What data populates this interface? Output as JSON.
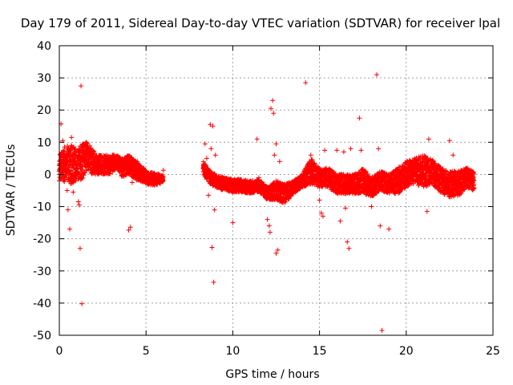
{
  "chart_data": {
    "type": "scatter",
    "title": "Day 179 of 2011, Sidereal Day-to-day VTEC variation (SDTVAR) for receiver lpal",
    "xlabel": "GPS time / hours",
    "ylabel": "SDTVAR / TECUs",
    "xlim": [
      0,
      25
    ],
    "ylim": [
      -50,
      40
    ],
    "xticks": [
      0,
      5,
      10,
      15,
      20,
      25
    ],
    "yticks": [
      -50,
      -40,
      -30,
      -20,
      -10,
      0,
      10,
      20,
      30,
      40
    ],
    "grid": true,
    "marker": "+",
    "color": "#ff0000",
    "dense_band": [
      [
        0.0,
        2,
        4
      ],
      [
        0.2,
        3,
        5
      ],
      [
        0.5,
        3,
        6
      ],
      [
        0.8,
        3,
        6
      ],
      [
        1.0,
        3,
        5
      ],
      [
        1.3,
        4,
        6
      ],
      [
        1.6,
        6,
        4
      ],
      [
        1.9,
        4,
        4
      ],
      [
        2.2,
        3,
        3
      ],
      [
        2.5,
        3,
        3
      ],
      [
        3.0,
        3,
        3
      ],
      [
        3.3,
        4,
        2
      ],
      [
        3.6,
        2,
        3
      ],
      [
        4.0,
        3,
        3
      ],
      [
        4.5,
        1,
        3
      ],
      [
        5.0,
        -1,
        2
      ],
      [
        5.5,
        -1.5,
        2
      ],
      [
        6.0,
        -1.5,
        1
      ],
      [
        8.3,
        2,
        2
      ],
      [
        8.7,
        -1,
        2
      ],
      [
        9.0,
        -2,
        2
      ],
      [
        9.5,
        -3,
        2
      ],
      [
        10.0,
        -3.5,
        2
      ],
      [
        10.5,
        -3.5,
        2
      ],
      [
        11.0,
        -4,
        2
      ],
      [
        11.5,
        -3.5,
        2
      ],
      [
        12.0,
        -6,
        2
      ],
      [
        12.5,
        -5,
        3
      ],
      [
        13.0,
        -6,
        3
      ],
      [
        13.5,
        -4,
        2
      ],
      [
        14.0,
        -2,
        2
      ],
      [
        14.5,
        1,
        4
      ],
      [
        15.0,
        -1,
        3
      ],
      [
        15.5,
        -1,
        3
      ],
      [
        16.0,
        -3,
        3
      ],
      [
        16.5,
        -3,
        3
      ],
      [
        17.0,
        -3,
        3
      ],
      [
        17.5,
        -2,
        4
      ],
      [
        18.0,
        -4,
        3
      ],
      [
        18.5,
        -2,
        3
      ],
      [
        19.0,
        -3,
        3
      ],
      [
        19.5,
        -2,
        4
      ],
      [
        20.0,
        0,
        4
      ],
      [
        20.5,
        1,
        4
      ],
      [
        21.0,
        1,
        5
      ],
      [
        21.5,
        1,
        4
      ],
      [
        22.0,
        -2,
        4
      ],
      [
        22.5,
        -3,
        4
      ],
      [
        23.0,
        -3,
        4
      ],
      [
        23.5,
        -1,
        3
      ],
      [
        23.9,
        -2,
        3
      ]
    ],
    "band_segments": [
      [
        0.0,
        6.0
      ],
      [
        8.3,
        23.9
      ]
    ],
    "outliers": [
      [
        0.1,
        15.7
      ],
      [
        0.2,
        10.5
      ],
      [
        0.3,
        8.5
      ],
      [
        0.45,
        -5
      ],
      [
        0.5,
        -11
      ],
      [
        0.6,
        -17
      ],
      [
        0.7,
        11.5
      ],
      [
        0.8,
        -5.5
      ],
      [
        1.1,
        -8.5
      ],
      [
        1.15,
        -9.5
      ],
      [
        1.2,
        -23
      ],
      [
        1.25,
        27.5
      ],
      [
        1.3,
        -40.2
      ],
      [
        1.5,
        9
      ],
      [
        4.0,
        -17.3
      ],
      [
        4.1,
        -16.4
      ],
      [
        4.2,
        -2.5
      ],
      [
        4.5,
        4
      ],
      [
        6.0,
        1.3
      ],
      [
        8.4,
        9.5
      ],
      [
        8.5,
        5
      ],
      [
        8.6,
        -6.5
      ],
      [
        8.7,
        15.5
      ],
      [
        8.75,
        8
      ],
      [
        8.8,
        -22.7
      ],
      [
        8.85,
        15
      ],
      [
        8.9,
        -33.5
      ],
      [
        8.95,
        -11
      ],
      [
        9.0,
        6
      ],
      [
        10.0,
        -15
      ],
      [
        11.4,
        11
      ],
      [
        11.5,
        -1
      ],
      [
        12.0,
        -14
      ],
      [
        12.1,
        -16
      ],
      [
        12.15,
        -18
      ],
      [
        12.2,
        20.5
      ],
      [
        12.3,
        23
      ],
      [
        12.35,
        19
      ],
      [
        12.4,
        6
      ],
      [
        12.5,
        -24.5
      ],
      [
        12.6,
        -23.5
      ],
      [
        12.5,
        9.5
      ],
      [
        12.7,
        4
      ],
      [
        14.2,
        28.5
      ],
      [
        14.5,
        6
      ],
      [
        15.0,
        -8
      ],
      [
        15.1,
        -12
      ],
      [
        15.2,
        -13
      ],
      [
        15.3,
        7.5
      ],
      [
        16.0,
        7.5
      ],
      [
        16.2,
        -14.5
      ],
      [
        16.4,
        7
      ],
      [
        16.5,
        -10.5
      ],
      [
        16.6,
        -21
      ],
      [
        16.7,
        -23
      ],
      [
        16.8,
        8
      ],
      [
        17.0,
        -5
      ],
      [
        17.3,
        17.5
      ],
      [
        17.4,
        7.5
      ],
      [
        18.0,
        -10
      ],
      [
        18.3,
        31
      ],
      [
        18.4,
        8
      ],
      [
        18.5,
        -16
      ],
      [
        18.6,
        -48.5
      ],
      [
        18.8,
        -4
      ],
      [
        19.0,
        -17
      ],
      [
        20.0,
        3
      ],
      [
        21.2,
        -11.5
      ],
      [
        21.3,
        11
      ],
      [
        22.5,
        10.5
      ],
      [
        22.7,
        6
      ]
    ]
  }
}
